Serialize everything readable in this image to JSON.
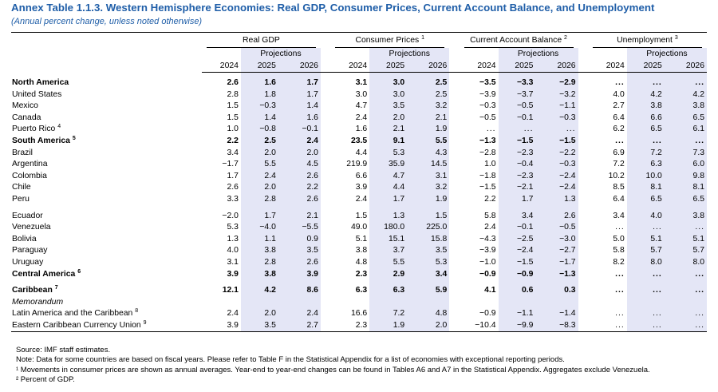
{
  "title": "Annex Table 1.1.3. Western Hemisphere Economies: Real GDP, Consumer Prices, Current Account Balance, and Unemployment",
  "subtitle": "(Annual percent change, unless noted otherwise)",
  "groups": [
    {
      "label": "Real GDP",
      "sup": ""
    },
    {
      "label": "Consumer Prices",
      "sup": "1"
    },
    {
      "label": "Current Account Balance",
      "sup": "2"
    },
    {
      "label": "Unemployment",
      "sup": "3"
    }
  ],
  "projections_label": "Projections",
  "years": [
    "2024",
    "2025",
    "2026"
  ],
  "rows": [
    {
      "label": "North America",
      "sup": "",
      "bold": true,
      "vals": [
        "2.6",
        "1.6",
        "1.7",
        "3.1",
        "3.0",
        "2.5",
        "−3.5",
        "−3.3",
        "−2.9",
        "...",
        "...",
        "..."
      ]
    },
    {
      "label": "United States",
      "sup": "",
      "vals": [
        "2.8",
        "1.8",
        "1.7",
        "3.0",
        "3.0",
        "2.5",
        "−3.9",
        "−3.7",
        "−3.2",
        "4.0",
        "4.2",
        "4.2"
      ]
    },
    {
      "label": "Mexico",
      "sup": "",
      "vals": [
        "1.5",
        "−0.3",
        "1.4",
        "4.7",
        "3.5",
        "3.2",
        "−0.3",
        "−0.5",
        "−1.1",
        "2.7",
        "3.8",
        "3.8"
      ]
    },
    {
      "label": "Canada",
      "sup": "",
      "vals": [
        "1.5",
        "1.4",
        "1.6",
        "2.4",
        "2.0",
        "2.1",
        "−0.5",
        "−0.1",
        "−0.3",
        "6.4",
        "6.6",
        "6.5"
      ]
    },
    {
      "label": "Puerto Rico",
      "sup": "4",
      "vals": [
        "1.0",
        "−0.8",
        "−0.1",
        "1.6",
        "2.1",
        "1.9",
        "...",
        "...",
        "...",
        "6.2",
        "6.5",
        "6.1"
      ]
    },
    {
      "label": "South America",
      "sup": "5",
      "bold": true,
      "vals": [
        "2.2",
        "2.5",
        "2.4",
        "23.5",
        "9.1",
        "5.5",
        "−1.3",
        "−1.5",
        "−1.5",
        "...",
        "...",
        "..."
      ]
    },
    {
      "label": "Brazil",
      "sup": "",
      "vals": [
        "3.4",
        "2.0",
        "2.0",
        "4.4",
        "5.3",
        "4.3",
        "−2.8",
        "−2.3",
        "−2.2",
        "6.9",
        "7.2",
        "7.3"
      ]
    },
    {
      "label": "Argentina",
      "sup": "",
      "vals": [
        "−1.7",
        "5.5",
        "4.5",
        "219.9",
        "35.9",
        "14.5",
        "1.0",
        "−0.4",
        "−0.3",
        "7.2",
        "6.3",
        "6.0"
      ]
    },
    {
      "label": "Colombia",
      "sup": "",
      "vals": [
        "1.7",
        "2.4",
        "2.6",
        "6.6",
        "4.7",
        "3.1",
        "−1.8",
        "−2.3",
        "−2.4",
        "10.2",
        "10.0",
        "9.8"
      ]
    },
    {
      "label": "Chile",
      "sup": "",
      "vals": [
        "2.6",
        "2.0",
        "2.2",
        "3.9",
        "4.4",
        "3.2",
        "−1.5",
        "−2.1",
        "−2.4",
        "8.5",
        "8.1",
        "8.1"
      ]
    },
    {
      "label": "Peru",
      "sup": "",
      "vals": [
        "3.3",
        "2.8",
        "2.6",
        "2.4",
        "1.7",
        "1.9",
        "2.2",
        "1.7",
        "1.3",
        "6.4",
        "6.5",
        "6.5"
      ]
    },
    {
      "label": "Ecuador",
      "sup": "",
      "spacer": true,
      "vals": [
        "−2.0",
        "1.7",
        "2.1",
        "1.5",
        "1.3",
        "1.5",
        "5.8",
        "3.4",
        "2.6",
        "3.4",
        "4.0",
        "3.8"
      ]
    },
    {
      "label": "Venezuela",
      "sup": "",
      "vals": [
        "5.3",
        "−4.0",
        "−5.5",
        "49.0",
        "180.0",
        "225.0",
        "2.4",
        "−0.1",
        "−0.5",
        "...",
        "...",
        "..."
      ]
    },
    {
      "label": "Bolivia",
      "sup": "",
      "vals": [
        "1.3",
        "1.1",
        "0.9",
        "5.1",
        "15.1",
        "15.8",
        "−4.3",
        "−2.5",
        "−3.0",
        "5.0",
        "5.1",
        "5.1"
      ]
    },
    {
      "label": "Paraguay",
      "sup": "",
      "vals": [
        "4.0",
        "3.8",
        "3.5",
        "3.8",
        "3.7",
        "3.5",
        "−3.9",
        "−2.4",
        "−2.7",
        "5.8",
        "5.7",
        "5.7"
      ]
    },
    {
      "label": "Uruguay",
      "sup": "",
      "vals": [
        "3.1",
        "2.8",
        "2.6",
        "4.8",
        "5.5",
        "5.3",
        "−1.0",
        "−1.5",
        "−1.7",
        "8.2",
        "8.0",
        "8.0"
      ]
    },
    {
      "label": "Central America",
      "sup": "6",
      "bold": true,
      "vals": [
        "3.9",
        "3.8",
        "3.9",
        "2.3",
        "2.9",
        "3.4",
        "−0.9",
        "−0.9",
        "−1.3",
        "...",
        "...",
        "..."
      ]
    },
    {
      "label": "Caribbean",
      "sup": "7",
      "bold": true,
      "spacer": true,
      "vals": [
        "12.1",
        "4.2",
        "8.6",
        "6.3",
        "6.3",
        "5.9",
        "4.1",
        "0.6",
        "0.3",
        "...",
        "...",
        "..."
      ]
    },
    {
      "label": "Memorandum",
      "sup": "",
      "memo": true,
      "vals": [
        "",
        "",
        "",
        "",
        "",
        "",
        "",
        "",
        "",
        "",
        "",
        ""
      ]
    },
    {
      "label": "Latin America and the Caribbean",
      "sup": "8",
      "vals": [
        "2.4",
        "2.0",
        "2.4",
        "16.6",
        "7.2",
        "4.8",
        "−0.9",
        "−1.1",
        "−1.4",
        "...",
        "...",
        "..."
      ]
    },
    {
      "label": "Eastern Caribbean Currency Union",
      "sup": "9",
      "vals": [
        "3.9",
        "3.5",
        "2.7",
        "2.3",
        "1.9",
        "2.0",
        "−10.4",
        "−9.9",
        "−8.3",
        "...",
        "...",
        "..."
      ]
    }
  ],
  "notes": [
    "Source: IMF staff estimates.",
    "Note: Data for some countries are based on fiscal years. Please refer to Table F in the Statistical Appendix for a list of economies with exceptional reporting periods.",
    "¹ Movements in consumer prices are shown as annual averages. Year-end to year-end changes can be found in Tables A6 and A7 in the Statistical Appendix. Aggregates exclude Venezuela.",
    "² Percent of GDP."
  ]
}
